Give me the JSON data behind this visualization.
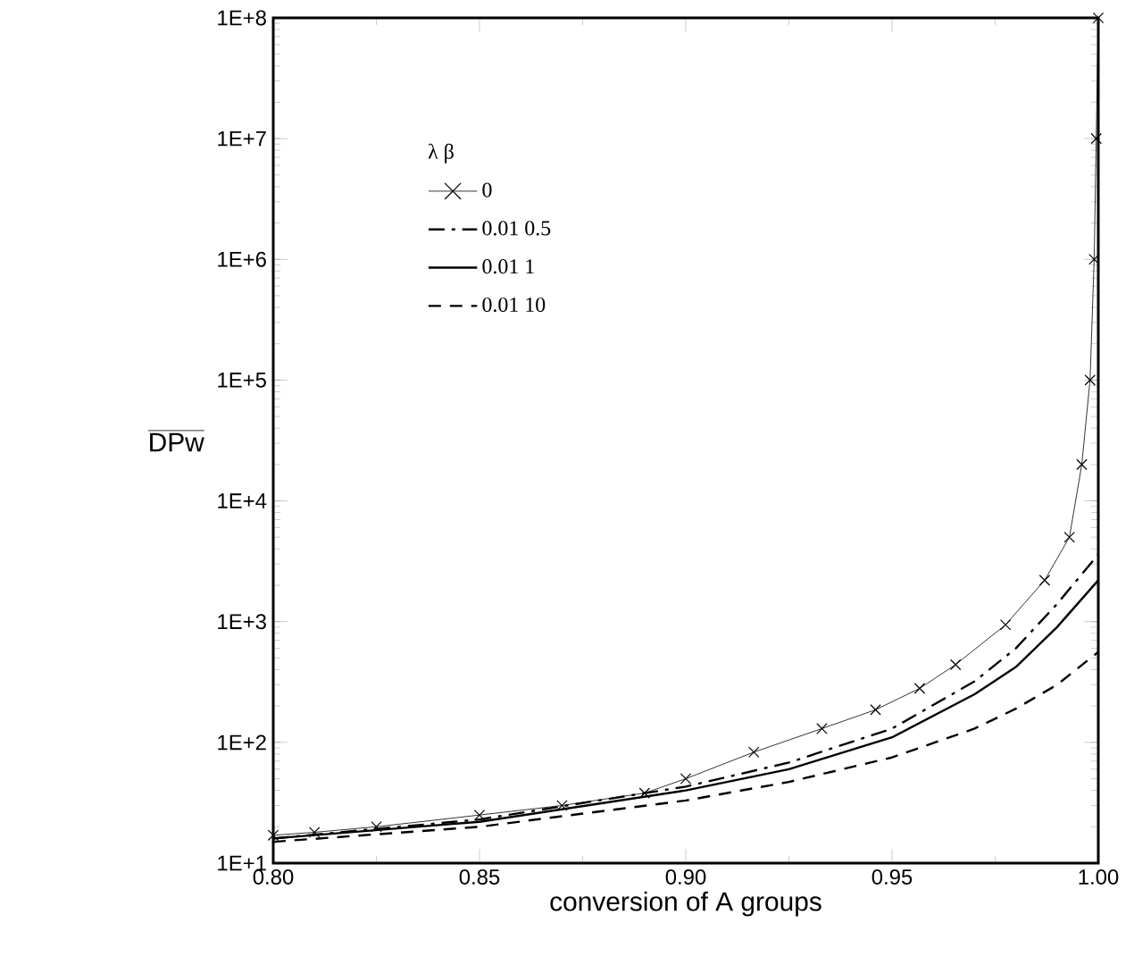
{
  "chart_data": {
    "type": "line",
    "xlabel": "conversion of A groups",
    "ylabel": "DPw",
    "legend_title": "λ     β",
    "log": "y",
    "legend": "top left",
    "xlim": [
      0.8,
      1.0
    ],
    "xticks": [
      {
        "value": 0.8,
        "label": "0.80"
      },
      {
        "value": 0.85,
        "label": "0.85"
      },
      {
        "value": 0.9,
        "label": "0.90"
      },
      {
        "value": 0.95,
        "label": "0.95"
      },
      {
        "value": 1.0,
        "label": "1.00"
      }
    ],
    "ylim": [
      10,
      100000000
    ],
    "yticks": [
      {
        "value": 10,
        "label": "1E+1"
      },
      {
        "value": 100,
        "label": "1E+2"
      },
      {
        "value": 1000,
        "label": "1E+3"
      },
      {
        "value": 10000,
        "label": "1E+4"
      },
      {
        "value": 100000,
        "label": "1E+5"
      },
      {
        "value": 1000000,
        "label": "1E+6"
      },
      {
        "value": 10000000,
        "label": "1E+7"
      },
      {
        "value": 100000000,
        "label": "1E+8"
      }
    ],
    "series": [
      {
        "name": "0",
        "color": "#000000",
        "marker": "cross",
        "line_style": "solid",
        "x": [
          0.8,
          0.81,
          0.825,
          0.85,
          0.87,
          0.89,
          0.9,
          0.9165,
          0.933,
          0.946,
          0.9567,
          0.9654,
          0.9775,
          0.987,
          0.993,
          0.996,
          0.998,
          0.999,
          0.9995,
          1.0
        ],
        "values": [
          17,
          18,
          20,
          25,
          30,
          38,
          50,
          83,
          130,
          186,
          280,
          440,
          940,
          2200,
          5000,
          20000,
          100000,
          1000000,
          10000000,
          100000000
        ]
      },
      {
        "name": "0.01  0.5",
        "color": "#000000",
        "marker": "none",
        "line_style": "dashdot",
        "x": [
          0.8,
          0.85,
          0.9,
          0.925,
          0.95,
          0.97,
          0.98,
          0.99,
          1.0
        ],
        "values": [
          16,
          23,
          43,
          68,
          130,
          320,
          600,
          1400,
          3600
        ]
      },
      {
        "name": "0.01  1",
        "color": "#000000",
        "marker": "none",
        "line_style": "solid",
        "x": [
          0.8,
          0.85,
          0.9,
          0.925,
          0.95,
          0.97,
          0.98,
          0.99,
          1.0
        ],
        "values": [
          16,
          22,
          40,
          60,
          110,
          250,
          420,
          900,
          2200
        ]
      },
      {
        "name": "0.01  10",
        "color": "#000000",
        "marker": "none",
        "line_style": "dashed",
        "x": [
          0.8,
          0.85,
          0.9,
          0.925,
          0.95,
          0.97,
          0.98,
          0.99,
          1.0
        ],
        "values": [
          15,
          20,
          33,
          47,
          75,
          130,
          190,
          300,
          560
        ]
      }
    ]
  }
}
